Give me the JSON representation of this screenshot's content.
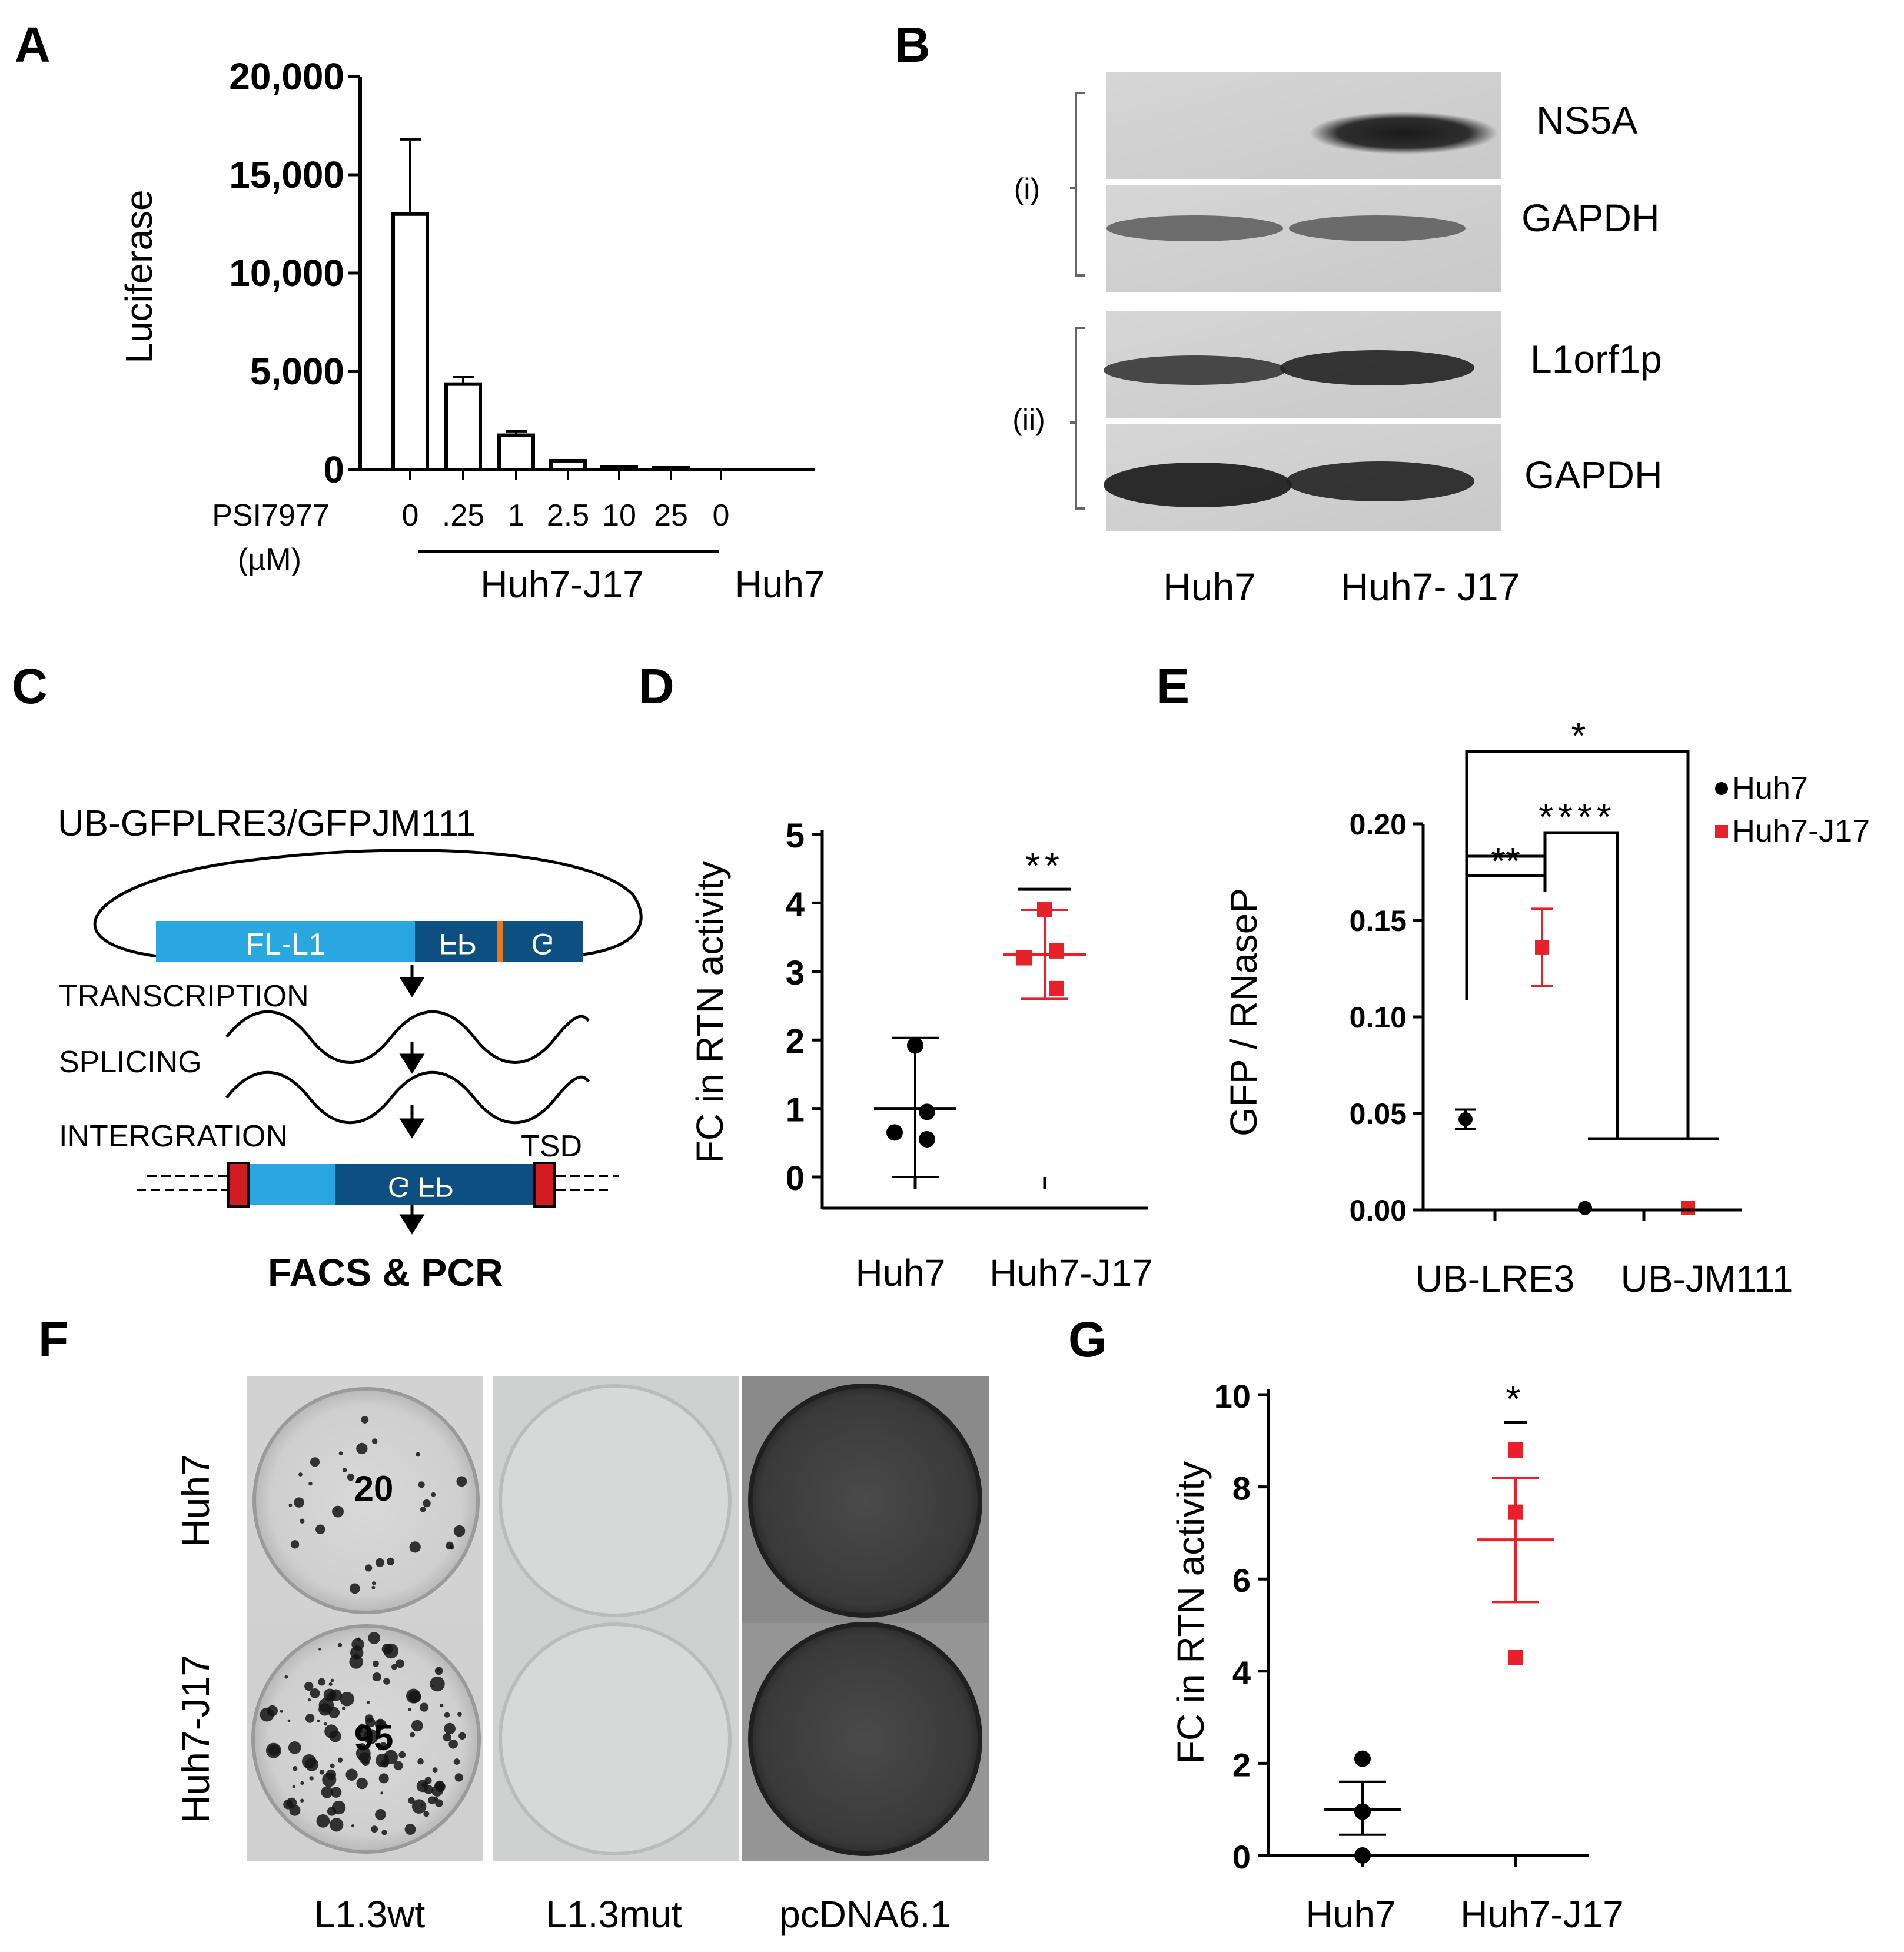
{
  "panel_letters": {
    "A": "A",
    "B": "B",
    "C": "C",
    "D": "D",
    "E": "E",
    "F": "F",
    "G": "G"
  },
  "colors": {
    "black": "#000000",
    "red": "#e8202a",
    "l1_light": "#29a8df",
    "gfp_dark": "#0d4f80",
    "orange": "#e87722",
    "tsd_red": "#d11c24"
  },
  "chart_data": [
    {
      "panel": "A",
      "type": "bar",
      "ylabel": "Luciferase",
      "ylim": [
        0,
        20000
      ],
      "yticks": [
        "0",
        "5,000",
        "10,000",
        "15,000",
        "20,000"
      ],
      "ytick_values": [
        0,
        5000,
        10000,
        15000,
        20000
      ],
      "x_title_line1": "PSI7977",
      "x_title_line2": "(µM)",
      "categories": [
        "0",
        ".25",
        "1",
        "2.5",
        "10",
        "25",
        "0"
      ],
      "values": [
        13000,
        4350,
        1750,
        450,
        130,
        90,
        0
      ],
      "errors": [
        3800,
        350,
        200,
        0,
        0,
        0,
        0
      ],
      "group_labels": [
        "Huh7-J17",
        "Huh7"
      ]
    },
    {
      "panel": "D",
      "type": "scatter",
      "ylabel": "FC in RTN activity",
      "ylim": [
        0,
        5
      ],
      "yticks": [
        "0",
        "1",
        "2",
        "3",
        "4",
        "5"
      ],
      "categories": [
        "Huh7",
        "Huh7-J17"
      ],
      "series": [
        {
          "points": [
            1.92,
            0.55,
            0.65,
            0.95
          ],
          "mean": 1.0,
          "err_low": 0.0,
          "err_high": 2.03,
          "color": "#000000",
          "marker": "circle"
        },
        {
          "points": [
            3.9,
            3.3,
            3.2,
            2.75
          ],
          "mean": 3.25,
          "err_low": 2.6,
          "err_high": 3.9,
          "color": "#e8202a",
          "marker": "square"
        }
      ],
      "significance": "**"
    },
    {
      "panel": "E",
      "type": "scatter",
      "ylabel": "GFP / RNaseP",
      "ylim": [
        0,
        0.2
      ],
      "yticks": [
        "0.00",
        "0.05",
        "0.10",
        "0.15",
        "0.20"
      ],
      "categories": [
        "UB-LRE3",
        "UB-JM111"
      ],
      "legend": [
        "Huh7",
        "Huh7-J17"
      ],
      "legend_position": "top-right",
      "series": [
        {
          "name": "Huh7",
          "values": [
            0.047,
            0.001
          ],
          "err": [
            0.005,
            0.0
          ],
          "color": "#000000",
          "marker": "circle"
        },
        {
          "name": "Huh7-J17",
          "values": [
            0.136,
            0.001
          ],
          "err": [
            0.02,
            0.0
          ],
          "color": "#e8202a",
          "marker": "square"
        }
      ],
      "significance": [
        "**",
        "****",
        "*"
      ]
    },
    {
      "panel": "G",
      "type": "scatter",
      "ylabel": "FC in RTN activity",
      "ylim": [
        0,
        10
      ],
      "yticks": [
        "0",
        "2",
        "4",
        "6",
        "8",
        "10"
      ],
      "categories": [
        "Huh7",
        "Huh7-J17"
      ],
      "series": [
        {
          "points": [
            2.1,
            0.95,
            0.0
          ],
          "mean": 1.0,
          "err_low": 0.45,
          "err_high": 1.6,
          "color": "#000000",
          "marker": "circle"
        },
        {
          "points": [
            8.8,
            7.45,
            4.3
          ],
          "mean": 6.85,
          "err_low": 5.5,
          "err_high": 8.2,
          "color": "#e8202a",
          "marker": "square"
        }
      ],
      "significance": "*"
    }
  ],
  "western_blot": {
    "bands": [
      "NS5A",
      "GAPDH",
      "L1orf1p",
      "GAPDH"
    ],
    "groups": [
      "(i)",
      "(ii)"
    ],
    "lanes": [
      "Huh7",
      "Huh7- J17"
    ]
  },
  "schematic": {
    "title": "UB-GFPLRE3/GFPJM111",
    "fl_label": "FL-L1",
    "gfp_label_1": "G",
    "gfp_label_2": "FP",
    "gfp_label_3": "G FP",
    "steps": [
      "TRANSCRIPTION",
      "SPLICING",
      "INTERGRATION"
    ],
    "tsd": "TSD",
    "readout": "FACS & PCR"
  },
  "plates": {
    "rows": [
      "Huh7",
      "Huh7-J17"
    ],
    "cols": [
      "L1.3wt",
      "L1.3mut",
      "pcDNA6.1"
    ],
    "counts": [
      "20",
      "95"
    ]
  }
}
